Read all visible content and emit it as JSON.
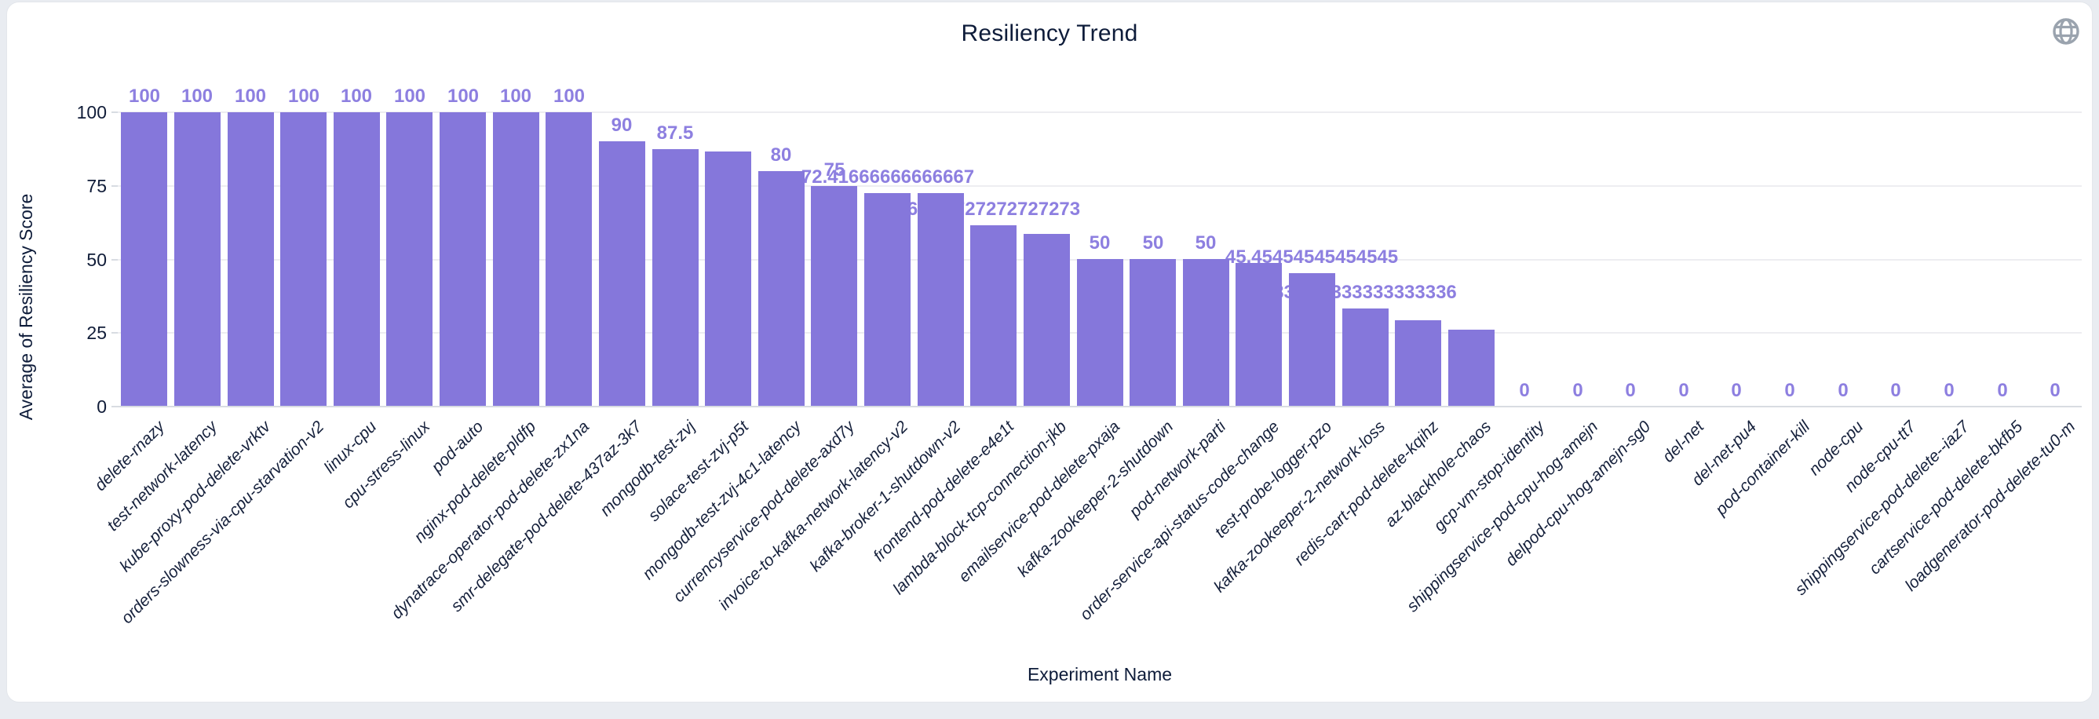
{
  "page_title": "Resiliency Trend",
  "icons": {
    "top_right": "globe-icon"
  },
  "colors": {
    "bar": "#8577db",
    "value_label": "#8d7fe0",
    "axis_text": "#0e1c3a",
    "tick_text": "#101c38",
    "gridline": "#ededf1",
    "axis_line": "#d8dce2",
    "card_bg": "#ffffff",
    "page_bg": "#e9ecf1",
    "icon_gray": "#9aa3ae"
  },
  "chart_data": {
    "type": "bar",
    "title": "Resiliency Trend",
    "xlabel": "Experiment Name",
    "ylabel": "Average of Resiliency Score",
    "ylim": [
      0,
      100
    ],
    "yticks": [
      0,
      25,
      50,
      75,
      100
    ],
    "grid": true,
    "legend": "none",
    "bar_color": "#8577db",
    "categories": [
      "delete-rnazy",
      "test-network-latency",
      "kube-proxy-pod-delete-vrktv",
      "orders-slowness-via-cpu-starvation-v2",
      "linux-cpu",
      "cpu-stress-linux",
      "pod-auto",
      "nginx-pod-delete-pldfp",
      "dynatrace-operator-pod-delete-zx1na",
      "smr-delegate-pod-delete-437az-3k7",
      "mongodb-test-zvj",
      "solace-test-zvj-p5t",
      "mongodb-test-zvj-4c1-latency",
      "currencyservice-pod-delete-axd7y",
      "invoice-to-kafka-network-latency-v2",
      "kafka-broker-1-shutdown-v2",
      "frontend-pod-delete-e4e1t",
      "lambda-block-tcp-connection-jkb",
      "emailservice-pod-delete-pxaja",
      "kafka-zookeeper-2-shutdown",
      "pod-network-parti",
      "order-service-api-status-code-change",
      "test-probe-logger-pzo",
      "kafka-zookeeper-2-network-loss",
      "redis-cart-pod-delete-kqihz",
      "az-blackhole-chaos",
      "gcp-vm-stop-identity",
      "shippingservice-pod-cpu-hog-amejn",
      "delpod-cpu-hog-amejn-sg0",
      "del-net",
      "del-net-pu4",
      "pod-container-kill",
      "node-cpu",
      "node-cpu-tt7",
      "shippingservice-pod-delete--iaz7",
      "cartservice-pod-delete-bkfb5",
      "loadgenerator-pod-delete-tu0-m"
    ],
    "values": [
      100,
      100,
      100,
      100,
      100,
      100,
      100,
      100,
      100,
      90,
      87.5,
      86.7,
      80,
      75,
      72.41666666666667,
      72.4,
      61.72727272727273,
      58.7,
      50,
      50,
      50,
      48.8,
      45.45454545454545,
      33.333333333333336,
      29.3,
      26.1,
      0,
      0,
      0,
      0,
      0,
      0,
      0,
      0,
      0,
      0,
      0
    ],
    "value_labels": [
      "100",
      "100",
      "100",
      "100",
      "100",
      "100",
      "100",
      "100",
      "100",
      "90",
      "87.5",
      "",
      "80",
      "75",
      "72.41666666666667",
      "",
      "61.72727272727273",
      "",
      "50",
      "50",
      "50",
      "",
      "45.45454545454545",
      "33.333333333333336",
      "",
      "",
      "0",
      "0",
      "0",
      "0",
      "0",
      "0",
      "0",
      "0",
      "0",
      "0",
      "0"
    ]
  }
}
